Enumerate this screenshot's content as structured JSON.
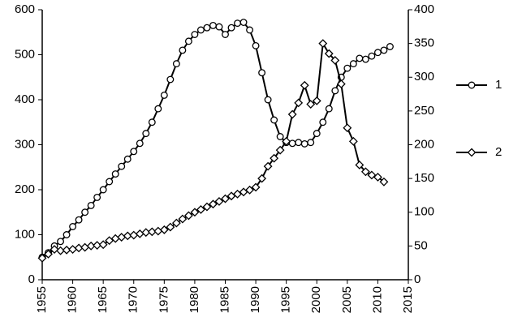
{
  "chart_data": {
    "type": "line",
    "x": [
      1955,
      1956,
      1957,
      1958,
      1959,
      1960,
      1961,
      1962,
      1963,
      1964,
      1965,
      1966,
      1967,
      1968,
      1969,
      1970,
      1971,
      1972,
      1973,
      1974,
      1975,
      1976,
      1977,
      1978,
      1979,
      1980,
      1981,
      1982,
      1983,
      1984,
      1985,
      1986,
      1987,
      1988,
      1989,
      1990,
      1991,
      1992,
      1993,
      1994,
      1995,
      1996,
      1997,
      1998,
      1999,
      2000,
      2001,
      2002,
      2003,
      2004,
      2005,
      2006,
      2007,
      2008,
      2009,
      2010,
      2011,
      2012
    ],
    "series": [
      {
        "name": "1",
        "color": "#000000",
        "marker": "circle",
        "values": [
          50,
          60,
          75,
          85,
          100,
          118,
          133,
          150,
          165,
          183,
          200,
          218,
          235,
          252,
          268,
          285,
          303,
          325,
          350,
          380,
          410,
          445,
          480,
          510,
          530,
          545,
          555,
          560,
          565,
          562,
          545,
          560,
          570,
          572,
          555,
          520,
          460,
          400,
          355,
          318,
          305,
          303,
          305,
          302,
          305,
          325,
          350,
          380,
          420,
          450,
          470,
          480,
          492,
          490,
          497,
          505,
          510,
          518
        ]
      },
      {
        "name": "2",
        "color": "#000000",
        "marker": "diamond",
        "axis": "y2",
        "values": [
          32,
          38,
          45,
          43,
          44,
          45,
          47,
          48,
          50,
          51,
          52,
          58,
          61,
          63,
          65,
          66,
          68,
          70,
          71,
          72,
          74,
          78,
          84,
          90,
          95,
          100,
          104,
          108,
          112,
          116,
          120,
          124,
          127,
          130,
          133,
          137,
          150,
          168,
          180,
          192,
          205,
          245,
          262,
          288,
          260,
          265,
          350,
          335,
          325,
          290,
          225,
          205,
          170,
          160,
          155,
          152,
          145,
          null
        ]
      }
    ],
    "xlim": [
      1955,
      2015
    ],
    "xticks": [
      1955,
      1960,
      1965,
      1970,
      1975,
      1980,
      1985,
      1990,
      1995,
      2000,
      2005,
      2010,
      2015
    ],
    "ylim": [
      0,
      600
    ],
    "yticks": [
      0,
      100,
      200,
      300,
      400,
      500,
      600
    ],
    "y2lim": [
      0,
      400
    ],
    "y2ticks": [
      0,
      50,
      100,
      150,
      200,
      250,
      300,
      350,
      400
    ],
    "grid": false,
    "legend": "right"
  }
}
